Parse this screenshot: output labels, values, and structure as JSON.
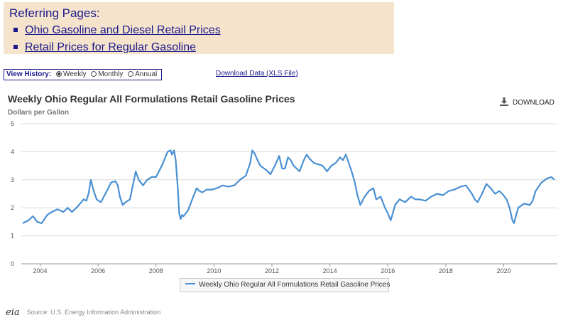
{
  "referring": {
    "title": "Referring Pages:",
    "links": [
      "Ohio Gasoline and Diesel Retail Prices",
      "Retail Prices for Regular Gasoline"
    ]
  },
  "history": {
    "label": "View History:",
    "options": [
      "Weekly",
      "Monthly",
      "Annual"
    ],
    "selected": "Weekly"
  },
  "download_data_label": "Download Data (XLS File)",
  "download_button_label": "DOWNLOAD",
  "footer": {
    "logo": "eia",
    "source": "Source: U.S. Energy Information Administration"
  },
  "colors": {
    "line": "#4a90d2",
    "link": "#1a1a8c",
    "panel": "#f5e3cc"
  },
  "chart_data": {
    "type": "line",
    "title": "Weekly Ohio Regular All Formulations Retail Gasoline Prices",
    "ylabel": "Dollars per Gallon",
    "xlabel": "",
    "ylim": [
      0,
      5
    ],
    "xlim": [
      2003.35,
      2021.85
    ],
    "grid": true,
    "legend_position": "bottom-center",
    "x_ticks": [
      "2004",
      "2006",
      "2008",
      "2010",
      "2012",
      "2014",
      "2016",
      "2018",
      "2020"
    ],
    "y_ticks": [
      "0",
      "1",
      "2",
      "3",
      "4",
      "5"
    ],
    "series": [
      {
        "name": "Weekly Ohio Regular All Formulations Retail Gasoline Prices",
        "x": [
          2003.4,
          2003.6,
          2003.75,
          2003.9,
          2004.05,
          2004.25,
          2004.4,
          2004.6,
          2004.8,
          2004.95,
          2005.1,
          2005.3,
          2005.5,
          2005.6,
          2005.68,
          2005.75,
          2005.85,
          2005.95,
          2006.1,
          2006.3,
          2006.45,
          2006.6,
          2006.68,
          2006.75,
          2006.85,
          2006.95,
          2007.1,
          2007.3,
          2007.4,
          2007.55,
          2007.7,
          2007.85,
          2008.0,
          2008.2,
          2008.4,
          2008.5,
          2008.55,
          2008.62,
          2008.68,
          2008.75,
          2008.8,
          2008.85,
          2008.9,
          2008.95,
          2009.1,
          2009.25,
          2009.4,
          2009.5,
          2009.6,
          2009.75,
          2009.95,
          2010.1,
          2010.3,
          2010.5,
          2010.7,
          2010.9,
          2011.1,
          2011.25,
          2011.32,
          2011.4,
          2011.5,
          2011.6,
          2011.8,
          2011.95,
          2012.1,
          2012.25,
          2012.35,
          2012.45,
          2012.55,
          2012.65,
          2012.75,
          2012.85,
          2012.95,
          2013.1,
          2013.2,
          2013.3,
          2013.45,
          2013.6,
          2013.75,
          2013.9,
          2014.05,
          2014.2,
          2014.35,
          2014.45,
          2014.55,
          2014.65,
          2014.75,
          2014.85,
          2014.95,
          2015.05,
          2015.2,
          2015.35,
          2015.5,
          2015.6,
          2015.75,
          2015.9,
          2016.0,
          2016.1,
          2016.25,
          2016.4,
          2016.6,
          2016.8,
          2016.95,
          2017.1,
          2017.3,
          2017.5,
          2017.7,
          2017.9,
          2018.1,
          2018.3,
          2018.5,
          2018.7,
          2018.9,
          2019.0,
          2019.1,
          2019.25,
          2019.4,
          2019.55,
          2019.7,
          2019.85,
          2019.95,
          2020.1,
          2020.2,
          2020.3,
          2020.35,
          2020.5,
          2020.7,
          2020.9,
          2021.0,
          2021.1,
          2021.3,
          2021.5,
          2021.65,
          2021.75
        ],
        "y": [
          1.45,
          1.55,
          1.7,
          1.5,
          1.45,
          1.75,
          1.85,
          1.95,
          1.85,
          2.0,
          1.85,
          2.05,
          2.3,
          2.25,
          2.55,
          3.0,
          2.6,
          2.3,
          2.2,
          2.6,
          2.9,
          2.95,
          2.8,
          2.4,
          2.1,
          2.2,
          2.3,
          3.3,
          3.0,
          2.8,
          3.0,
          3.1,
          3.1,
          3.5,
          4.0,
          4.05,
          3.9,
          4.05,
          3.7,
          2.7,
          1.8,
          1.6,
          1.75,
          1.7,
          1.9,
          2.3,
          2.7,
          2.6,
          2.55,
          2.65,
          2.65,
          2.7,
          2.8,
          2.75,
          2.8,
          3.0,
          3.15,
          3.6,
          4.05,
          3.95,
          3.7,
          3.5,
          3.35,
          3.2,
          3.5,
          3.85,
          3.4,
          3.4,
          3.8,
          3.7,
          3.5,
          3.4,
          3.3,
          3.7,
          3.9,
          3.75,
          3.6,
          3.55,
          3.5,
          3.3,
          3.5,
          3.6,
          3.8,
          3.7,
          3.9,
          3.6,
          3.3,
          2.95,
          2.45,
          2.1,
          2.4,
          2.6,
          2.7,
          2.3,
          2.4,
          2.0,
          1.8,
          1.55,
          2.1,
          2.3,
          2.2,
          2.4,
          2.3,
          2.3,
          2.25,
          2.4,
          2.5,
          2.45,
          2.6,
          2.65,
          2.75,
          2.8,
          2.5,
          2.3,
          2.2,
          2.5,
          2.85,
          2.7,
          2.5,
          2.6,
          2.5,
          2.3,
          2.0,
          1.55,
          1.45,
          2.0,
          2.15,
          2.1,
          2.25,
          2.6,
          2.9,
          3.05,
          3.1,
          3.0
        ]
      }
    ]
  }
}
